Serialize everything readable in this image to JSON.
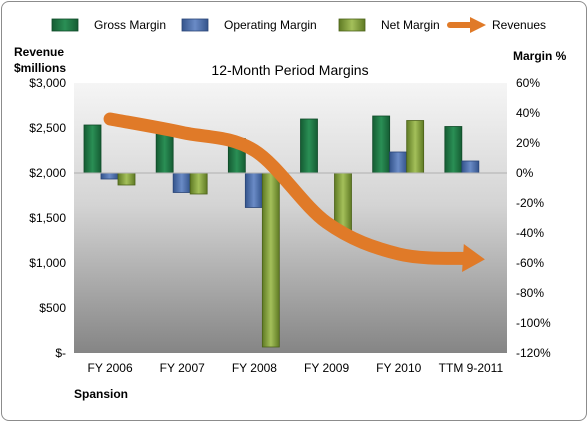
{
  "chart_data": {
    "type": "bar",
    "title": "12-Month Period Margins",
    "company": "Spansion",
    "categories": [
      "FY 2006",
      "FY 2007",
      "FY 2008",
      "FY 2009",
      "FY 2010",
      "TTM 9-2011"
    ],
    "left_axis": {
      "label_line1": "Revenue",
      "label_line2": "$millions",
      "ylim": [
        0,
        3000
      ],
      "ticks": [
        "$3,000",
        "$2,500",
        "$2,000",
        "$1,500",
        "$1,000",
        "$500",
        "$-"
      ]
    },
    "right_axis": {
      "label": "Margin %",
      "ylim": [
        -120,
        60
      ],
      "ticks": [
        "60%",
        "40%",
        "20%",
        "0%",
        "-20%",
        "-40%",
        "-60%",
        "-80%",
        "-100%",
        "-120%"
      ]
    },
    "series": [
      {
        "name": "Gross Margin",
        "axis": "right",
        "color": "#1e7a45",
        "values": [
          32,
          29,
          23,
          36,
          38,
          31
        ]
      },
      {
        "name": "Operating Margin",
        "axis": "right",
        "color": "#4a6ba8",
        "values": [
          -4,
          -13,
          -23,
          0,
          14,
          8
        ]
      },
      {
        "name": "Net Margin",
        "axis": "right",
        "color": "#7a9a35",
        "values": [
          -8,
          -14,
          -116,
          -40,
          35,
          0
        ]
      },
      {
        "name": "Revenues",
        "axis": "left",
        "type": "line",
        "color": "#e07a28",
        "values": [
          2600,
          2450,
          2250,
          1450,
          1100,
          1050
        ]
      }
    ],
    "legend": {
      "position": "top"
    },
    "grid": false
  }
}
